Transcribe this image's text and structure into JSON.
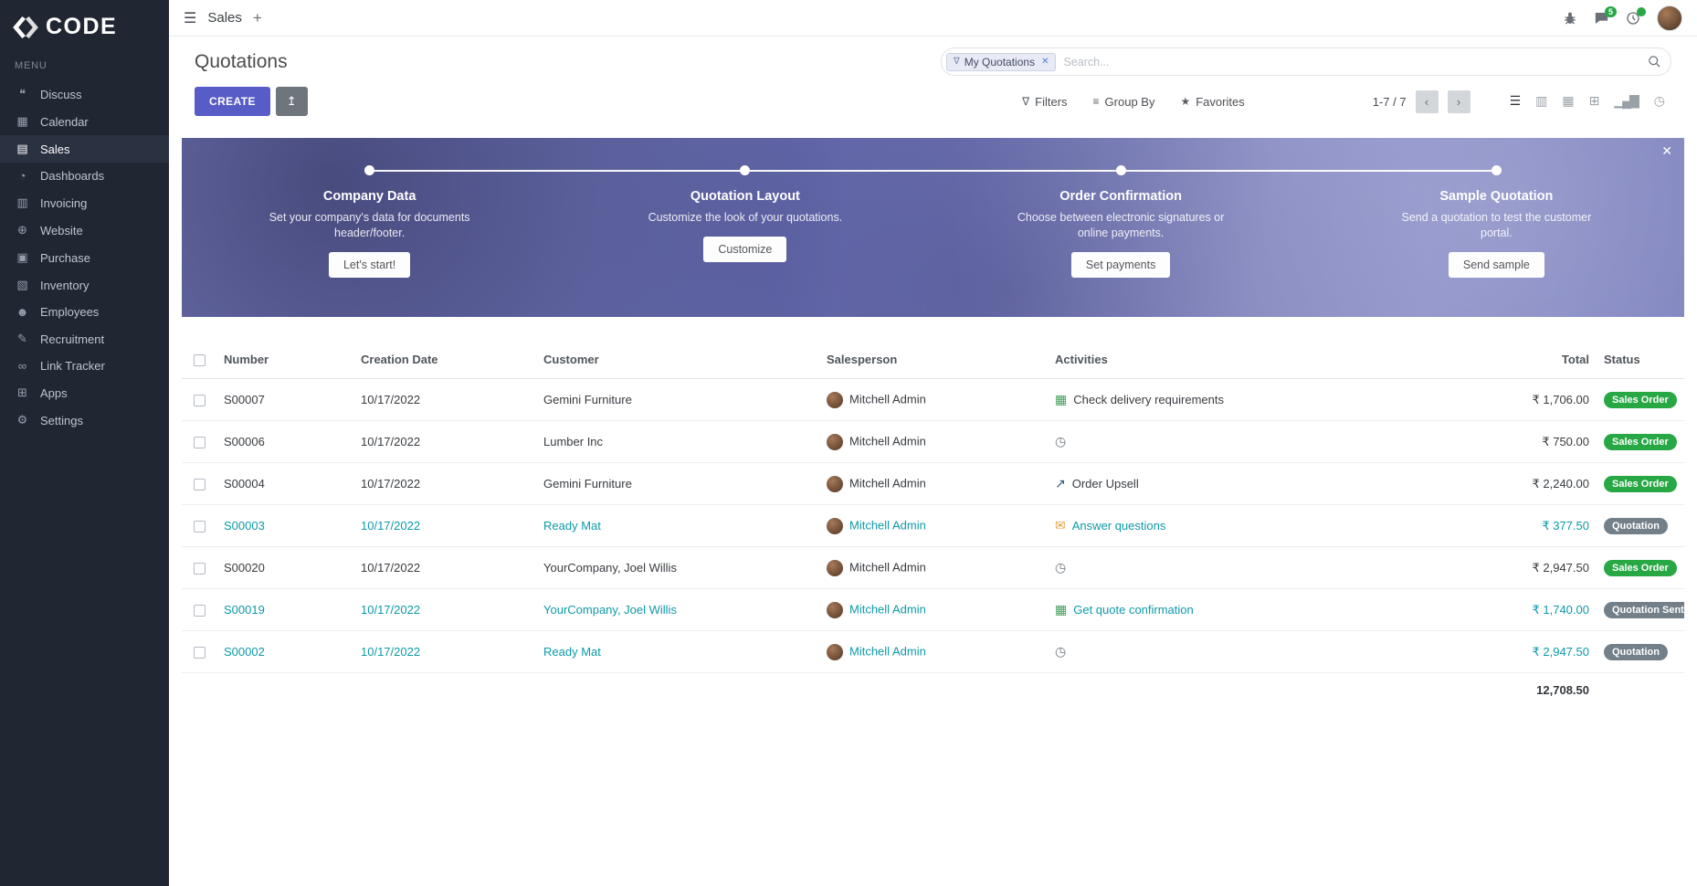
{
  "colors": {
    "accent": "#575cc7",
    "sidebar_bg": "#212732",
    "link_teal": "#0d9aa8",
    "badge_success": "#28a745",
    "badge_muted": "#73808a",
    "banner_purple": "#7277b8"
  },
  "icons": {
    "hamburger": "☰",
    "plus": "+",
    "filter": "∇",
    "group_by": "≡",
    "favorite": "★",
    "export": "↥",
    "prev": "‹",
    "next": "›",
    "tag_funnel": "∇",
    "remove": "✕"
  },
  "app": {
    "name": "CODE",
    "menu_label": "MENU"
  },
  "topbar": {
    "title": "Sales",
    "messages_badge": "5"
  },
  "sidebar": {
    "items": [
      {
        "label": "Discuss",
        "icon": "chat-icon",
        "glyph": "❝"
      },
      {
        "label": "Calendar",
        "icon": "calendar-icon",
        "glyph": "▦"
      },
      {
        "label": "Sales",
        "icon": "sales-icon",
        "glyph": "▤",
        "active": true
      },
      {
        "label": "Dashboards",
        "icon": "dashboard-icon",
        "glyph": "◔"
      },
      {
        "label": "Invoicing",
        "icon": "invoicing-icon",
        "glyph": "▥"
      },
      {
        "label": "Website",
        "icon": "globe-icon",
        "glyph": "⊕"
      },
      {
        "label": "Purchase",
        "icon": "purchase-icon",
        "glyph": "▣"
      },
      {
        "label": "Inventory",
        "icon": "inventory-icon",
        "glyph": "▧"
      },
      {
        "label": "Employees",
        "icon": "employees-icon",
        "glyph": "☻"
      },
      {
        "label": "Recruitment",
        "icon": "recruitment-icon",
        "glyph": "✎"
      },
      {
        "label": "Link Tracker",
        "icon": "link-icon",
        "glyph": "∞"
      },
      {
        "label": "Apps",
        "icon": "apps-icon",
        "glyph": "⊞"
      },
      {
        "label": "Settings",
        "icon": "gear-icon",
        "glyph": "⚙"
      }
    ]
  },
  "control_panel": {
    "title": "Quotations",
    "create_label": "CREATE",
    "search": {
      "tag": "My Quotations",
      "placeholder": "Search..."
    },
    "filters_label": "Filters",
    "group_by_label": "Group By",
    "favorites_label": "Favorites",
    "pager": "1-7 / 7",
    "views": [
      {
        "name": "list-view",
        "glyph": "☰",
        "active": true
      },
      {
        "name": "kanban-view",
        "glyph": "▥"
      },
      {
        "name": "calendar-view",
        "glyph": "▦"
      },
      {
        "name": "pivot-view",
        "glyph": "⊞"
      },
      {
        "name": "graph-view",
        "glyph": "▁▄▇"
      },
      {
        "name": "activity-view",
        "glyph": "◷"
      }
    ]
  },
  "banner": {
    "close": "✕",
    "steps": [
      {
        "title": "Company Data",
        "desc": "Set your company's data for documents header/footer.",
        "button": "Let's start!"
      },
      {
        "title": "Quotation Layout",
        "desc": "Customize the look of your quotations.",
        "button": "Customize"
      },
      {
        "title": "Order Confirmation",
        "desc": "Choose between electronic signatures or online payments.",
        "button": "Set payments"
      },
      {
        "title": "Sample Quotation",
        "desc": "Send a quotation to test the customer portal.",
        "button": "Send sample"
      }
    ]
  },
  "table": {
    "columns": [
      {
        "key": "number",
        "label": "Number"
      },
      {
        "key": "date",
        "label": "Creation Date"
      },
      {
        "key": "customer",
        "label": "Customer"
      },
      {
        "key": "salesperson",
        "label": "Salesperson"
      },
      {
        "key": "activities",
        "label": "Activities"
      },
      {
        "key": "total",
        "label": "Total"
      },
      {
        "key": "status",
        "label": "Status"
      }
    ],
    "rows": [
      {
        "number": "S00007",
        "date": "10/17/2022",
        "customer": "Gemini Furniture",
        "salesperson": "Mitchell Admin",
        "highlight": false,
        "activity": {
          "icon": "spreadsheet-icon",
          "glyph": "▦",
          "color": "#3f9e58",
          "label": "Check delivery requirements"
        },
        "total": "₹ 1,706.00",
        "status": {
          "label": "Sales Order",
          "type": "success"
        }
      },
      {
        "number": "S00006",
        "date": "10/17/2022",
        "customer": "Lumber Inc",
        "salesperson": "Mitchell Admin",
        "highlight": false,
        "activity": {
          "icon": "clock-icon",
          "glyph": "◷",
          "color": "#6e757c",
          "label": ""
        },
        "total": "₹ 750.00",
        "status": {
          "label": "Sales Order",
          "type": "success"
        }
      },
      {
        "number": "S00004",
        "date": "10/17/2022",
        "customer": "Gemini Furniture",
        "salesperson": "Mitchell Admin",
        "highlight": false,
        "activity": {
          "icon": "chart-icon",
          "glyph": "↗",
          "color": "#31597c",
          "label": "Order Upsell"
        },
        "total": "₹ 2,240.00",
        "status": {
          "label": "Sales Order",
          "type": "success"
        }
      },
      {
        "number": "S00003",
        "date": "10/17/2022",
        "customer": "Ready Mat",
        "salesperson": "Mitchell Admin",
        "highlight": true,
        "activity": {
          "icon": "envelope-icon",
          "glyph": "✉",
          "color": "#e59d3c",
          "label": "Answer questions"
        },
        "total": "₹ 377.50",
        "status": {
          "label": "Quotation",
          "type": "muted"
        }
      },
      {
        "number": "S00020",
        "date": "10/17/2022",
        "customer": "YourCompany, Joel Willis",
        "salesperson": "Mitchell Admin",
        "highlight": false,
        "activity": {
          "icon": "clock-icon",
          "glyph": "◷",
          "color": "#6e757c",
          "label": ""
        },
        "total": "₹ 2,947.50",
        "status": {
          "label": "Sales Order",
          "type": "success"
        }
      },
      {
        "number": "S00019",
        "date": "10/17/2022",
        "customer": "YourCompany, Joel Willis",
        "salesperson": "Mitchell Admin",
        "highlight": true,
        "activity": {
          "icon": "spreadsheet-icon",
          "glyph": "▦",
          "color": "#3f9e58",
          "label": "Get quote confirmation"
        },
        "total": "₹ 1,740.00",
        "status": {
          "label": "Quotation Sent",
          "type": "muted"
        }
      },
      {
        "number": "S00002",
        "date": "10/17/2022",
        "customer": "Ready Mat",
        "salesperson": "Mitchell Admin",
        "highlight": true,
        "activity": {
          "icon": "clock-icon",
          "glyph": "◷",
          "color": "#6e757c",
          "label": ""
        },
        "total": "₹ 2,947.50",
        "status": {
          "label": "Quotation",
          "type": "muted"
        }
      }
    ],
    "footer_total": "12,708.50"
  }
}
